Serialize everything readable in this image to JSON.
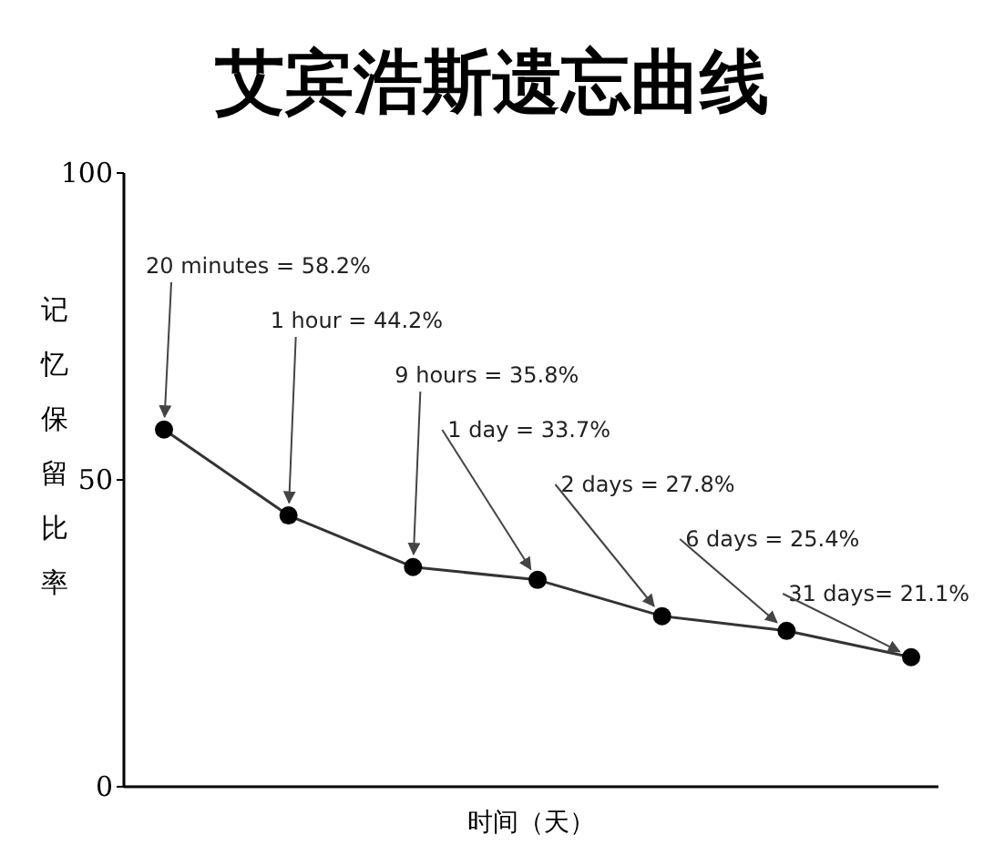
{
  "chart_data": {
    "type": "line",
    "title": "艾宾浩斯遗忘曲线",
    "xlabel": "时间（天）",
    "ylabel": "记忆保留比率",
    "categories": [
      null,
      null,
      null,
      null,
      null,
      null,
      null
    ],
    "series": [
      {
        "color": "#333333",
        "values": [
          58.2,
          44.2,
          35.8,
          33.7,
          27.8,
          25.4,
          21.1
        ]
      }
    ],
    "value_labels": [
      "20 minutes = 58.2%",
      "1 hour = 44.2%",
      "9 hours = 35.8%",
      "1 day = 33.7%",
      "2 days = 27.8%",
      "6 days = 25.4%",
      "31 days= 21.1%"
    ],
    "ylim": [
      0,
      100
    ],
    "yticks": [
      0,
      50,
      100
    ],
    "tick_labels": "y",
    "marker": "circle"
  }
}
